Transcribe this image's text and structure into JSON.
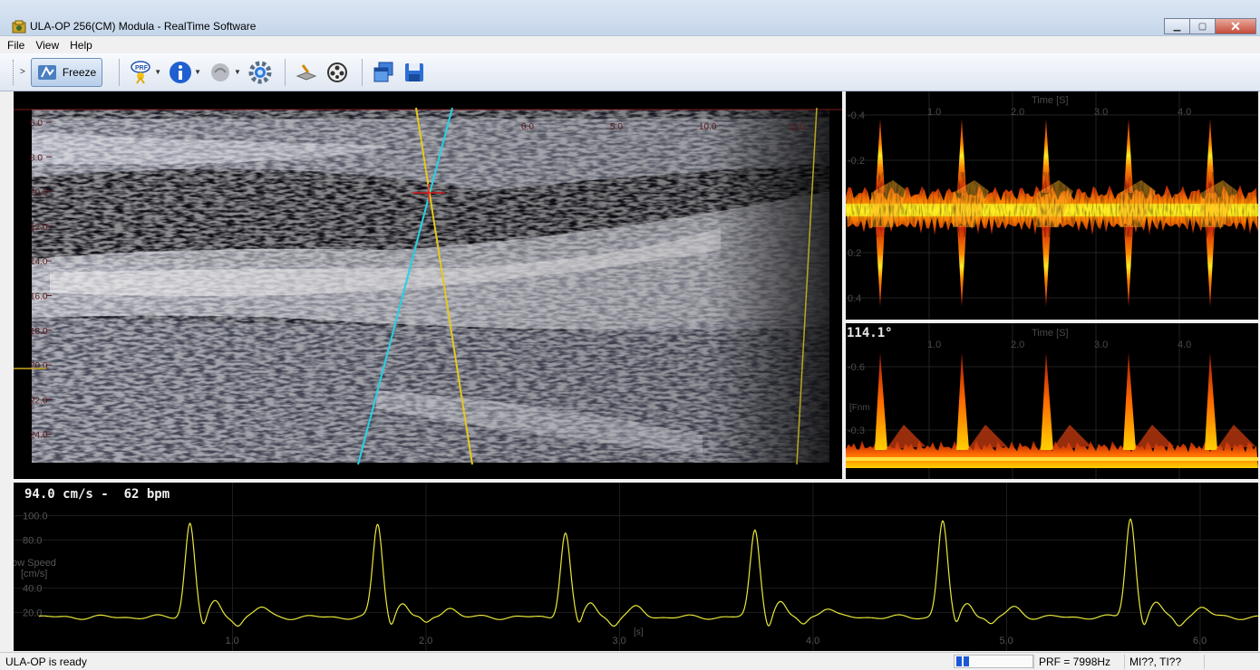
{
  "window": {
    "title": "ULA-OP 256(CM) Modula - RealTime Software",
    "controls": [
      "minimize-icon",
      "maximize-icon",
      "close-icon"
    ]
  },
  "menu": {
    "items": [
      "File",
      "View",
      "Help"
    ]
  },
  "toolbar": {
    "freeze_label": "Freeze",
    "icons": [
      "freeze-icon",
      "prf-icon",
      "info-icon",
      "probe-icon",
      "settings-gear-icon",
      "scanner-icon",
      "film-reel-icon",
      "windows-icon",
      "save-icon"
    ]
  },
  "bmode": {
    "depth_ticks": [
      "6.0",
      "8.0",
      "10.0",
      "12.0",
      "14.0",
      "16.0",
      "18.0",
      "20.0",
      "22.0",
      "24.0"
    ],
    "lateral_ticks": [
      "",
      "",
      "",
      "",
      "",
      "0.0",
      "5.0",
      "10.0",
      "15.0",
      "20.0"
    ]
  },
  "doppler_top": {
    "axis_title": "Time [S]",
    "time_ticks": [
      "1.0",
      "2.0",
      "3.0",
      "4.0"
    ],
    "freq_ticks": [
      "-0.4",
      "-0.2",
      "0.2",
      "0.4"
    ]
  },
  "doppler_bottom": {
    "angle_label": "114.1°",
    "axis_title": "Time [S]",
    "time_ticks": [
      "1.0",
      "2.0",
      "3.0",
      "4.0"
    ],
    "freq_ticks": [
      "-0.6",
      "-0.3"
    ],
    "ylabel": "[Fnm"
  },
  "speed_plot": {
    "readout": "94.0 cm/s -  62 bpm",
    "ylabel_line1": "ow Speed",
    "ylabel_line2": "[cm/s]",
    "y_ticks": [
      "100.0",
      "80.0",
      "40.0",
      "20.0"
    ],
    "x_ticks": [
      "1.0",
      "2.0",
      "3.0",
      "4.0",
      "5.0",
      "6.0"
    ],
    "x_unit": "[s]"
  },
  "chart_data": {
    "type": "line",
    "title": "94.0 cm/s -  62 bpm",
    "xlabel": "[s]",
    "ylabel": "ow Speed [cm/s]",
    "ylim": [
      0,
      105
    ],
    "xlim": [
      0.0,
      6.3
    ],
    "peaks_x": [
      0.78,
      1.75,
      2.72,
      3.7,
      4.67,
      5.64
    ],
    "peaks_y": [
      94,
      93,
      86,
      88,
      96,
      98
    ],
    "baseline": 16,
    "series": [
      {
        "name": "",
        "color": "#e8e83a"
      }
    ]
  },
  "status": {
    "text": "ULA-OP is ready",
    "prf": "PRF = 7998Hz",
    "mi": "MI??, TI??",
    "progress_segments": 2
  },
  "colors": {
    "trace": "#e8e83a",
    "cyan_line": "#22d3e6",
    "yellow_line": "#e6c81e",
    "axis_text": "#5a1a1a",
    "doppler_core": "#ffdd00",
    "doppler_edge": "#c81e0a"
  }
}
